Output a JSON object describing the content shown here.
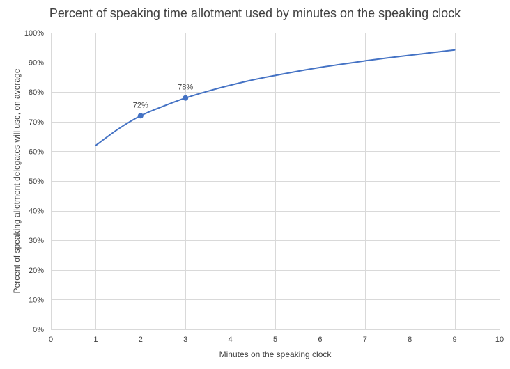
{
  "chart_data": {
    "type": "line",
    "title": "Percent of speaking time allotment used by minutes on the speaking clock",
    "xlabel": "Minutes on the speaking clock",
    "ylabel": "Percent of speaking allotment delegates will use, on average",
    "xlim": [
      0,
      10
    ],
    "ylim": [
      0,
      100
    ],
    "x_ticks": [
      "0",
      "1",
      "2",
      "3",
      "4",
      "5",
      "6",
      "7",
      "8",
      "9",
      "10"
    ],
    "y_ticks": [
      "0%",
      "10%",
      "20%",
      "30%",
      "40%",
      "50%",
      "60%",
      "70%",
      "80%",
      "90%",
      "100%"
    ],
    "grid": true,
    "legend": "none",
    "series": [
      {
        "color": "#4472C4",
        "x": [
          1,
          1.5,
          2,
          2.5,
          3,
          3.5,
          4,
          4.5,
          5,
          5.5,
          6,
          6.5,
          7,
          7.5,
          8,
          8.5,
          9
        ],
        "y": [
          62,
          67.5,
          72,
          75.2,
          78,
          80.3,
          82.3,
          84.1,
          85.6,
          87.0,
          88.3,
          89.4,
          90.5,
          91.5,
          92.4,
          93.3,
          94.2
        ]
      }
    ],
    "markers": [
      {
        "x": 2,
        "y": 72,
        "label": "72%"
      },
      {
        "x": 3,
        "y": 78,
        "label": "78%"
      }
    ]
  }
}
